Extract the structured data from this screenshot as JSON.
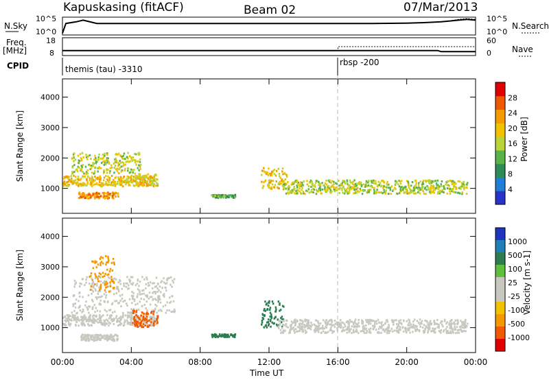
{
  "header": {
    "station": "Kapuskasing (fitACF)",
    "beam": "Beam 02",
    "date": "07/Mar/2013"
  },
  "panel_labels": {
    "nsky": "N.Sky",
    "freq": "Freq.",
    "freq_unit": "[MHz]",
    "cpid": "CPID",
    "nsearch": "N.Search",
    "nave": "Nave"
  },
  "cpid_segments": [
    {
      "label": "themis (tau) -3310",
      "start_hour": 0
    },
    {
      "label": "rbsp -200",
      "start_hour": 16
    }
  ],
  "colors": {
    "power": [
      "#2a33c8",
      "#1f7fd6",
      "#2e8b57",
      "#59b34a",
      "#b8d43a",
      "#f2c200",
      "#f59a00",
      "#ef5a00",
      "#e10000"
    ],
    "velocity": [
      "#1f35c0",
      "#1f7fb8",
      "#2e7d50",
      "#5fbf3e",
      "#c8c8c0",
      "#c8c8c0",
      "#f2c200",
      "#f29a00",
      "#f05a00",
      "#e00000"
    ]
  },
  "chart_data": [
    {
      "type": "line",
      "title": "N.Sky / N.Search",
      "y_ticks_left": [
        "10^5",
        "10^0"
      ],
      "y_ticks_right": [
        "10^5",
        "10^0"
      ],
      "x_range_hours": [
        0,
        24
      ],
      "series": [
        {
          "name": "N.Sky",
          "x": [
            0,
            0.2,
            0.8,
            1.2,
            2,
            4,
            6,
            8,
            10,
            12,
            14,
            16,
            18,
            20,
            21,
            22,
            22.5,
            23,
            23.5,
            24
          ],
          "values": [
            0.1,
            0.7,
            0.8,
            0.9,
            0.7,
            0.7,
            0.7,
            0.7,
            0.7,
            0.7,
            0.7,
            0.7,
            0.7,
            0.72,
            0.75,
            0.8,
            0.85,
            0.9,
            0.95,
            0.9
          ]
        },
        {
          "name": "N.Search",
          "x": [
            22,
            22.5,
            23,
            23.5,
            24
          ],
          "values": [
            0.8,
            0.85,
            0.95,
            1.0,
            0.95
          ]
        }
      ]
    },
    {
      "type": "line",
      "title": "Freq. / Nave",
      "y_ticks_left": [
        "18",
        "8"
      ],
      "y_ticks_right": [
        "60",
        "0"
      ],
      "x_range_hours": [
        0,
        24
      ],
      "series": [
        {
          "name": "Freq.",
          "x": [
            0,
            16,
            21.8,
            22,
            24
          ],
          "values": [
            10.8,
            10.8,
            10.8,
            10.2,
            10.2
          ]
        },
        {
          "name": "Nave",
          "x": [
            0,
            16,
            16.01,
            24
          ],
          "values": [
            16,
            16,
            30,
            30
          ]
        }
      ]
    },
    {
      "type": "heatmap",
      "title": "Power",
      "xlabel": "Time UT",
      "ylabel": "Slant Range [km]",
      "colorbar_label": "Power [dB]",
      "colorbar_ticks": [
        "4",
        "8",
        "12",
        "16",
        "20",
        "24",
        "28"
      ],
      "x_ticks": [
        "00:00",
        "04:00",
        "08:00",
        "12:00",
        "16:00",
        "20:00",
        "00:00"
      ],
      "y_ticks": [
        "1000",
        "2000",
        "3000",
        "4000"
      ],
      "ylim": [
        180,
        4600
      ],
      "x_range_hours": [
        0,
        24
      ],
      "bands": [
        {
          "t0": 0,
          "t1": 5.5,
          "r0": 1100,
          "r1": 1450,
          "level": 5
        },
        {
          "t0": 0.5,
          "t1": 4.5,
          "r0": 1500,
          "r1": 2200,
          "level": 4
        },
        {
          "t0": 0.9,
          "t1": 3.2,
          "r0": 700,
          "r1": 900,
          "level": 6
        },
        {
          "t0": 4.2,
          "t1": 5.4,
          "r0": 1100,
          "r1": 1500,
          "level": 5
        },
        {
          "t0": 8.6,
          "t1": 10,
          "r0": 720,
          "r1": 820,
          "level": 3
        },
        {
          "t0": 11.5,
          "t1": 13,
          "r0": 1000,
          "r1": 1700,
          "level": 5
        },
        {
          "t0": 12.8,
          "t1": 23.5,
          "r0": 850,
          "r1": 1300,
          "level": 4
        }
      ]
    },
    {
      "type": "heatmap",
      "title": "Velocity",
      "xlabel": "Time UT",
      "ylabel": "Slant Range [km]",
      "colorbar_label": "Velocity [m s-1]",
      "colorbar_ticks": [
        "1000",
        "500",
        "100",
        "25",
        "-25",
        "-100",
        "-500",
        "-1000"
      ],
      "x_ticks": [
        "00:00",
        "04:00",
        "08:00",
        "12:00",
        "16:00",
        "20:00",
        "00:00"
      ],
      "y_ticks": [
        "1000",
        "2000",
        "3000",
        "4000"
      ],
      "ylim": [
        180,
        4600
      ],
      "x_range_hours": [
        0,
        24
      ],
      "bands": [
        {
          "t0": 0,
          "t1": 5.5,
          "r0": 1100,
          "r1": 1450,
          "value": 0
        },
        {
          "t0": 0.5,
          "t1": 6.5,
          "r0": 1500,
          "r1": 2700,
          "value": 0
        },
        {
          "t0": 1,
          "t1": 3.2,
          "r0": 600,
          "r1": 800,
          "value": 0
        },
        {
          "t0": 4,
          "t1": 5.5,
          "r0": 1050,
          "r1": 1600,
          "value": -600
        },
        {
          "t0": 1.5,
          "t1": 3.0,
          "r0": 2200,
          "r1": 3400,
          "value": -300
        },
        {
          "t0": 8.6,
          "t1": 10,
          "r0": 720,
          "r1": 820,
          "value": 80
        },
        {
          "t0": 11.5,
          "t1": 12.8,
          "r0": 1000,
          "r1": 1900,
          "value": 100
        },
        {
          "t0": 12.5,
          "t1": 23.5,
          "r0": 850,
          "r1": 1300,
          "value": 0
        }
      ]
    }
  ]
}
